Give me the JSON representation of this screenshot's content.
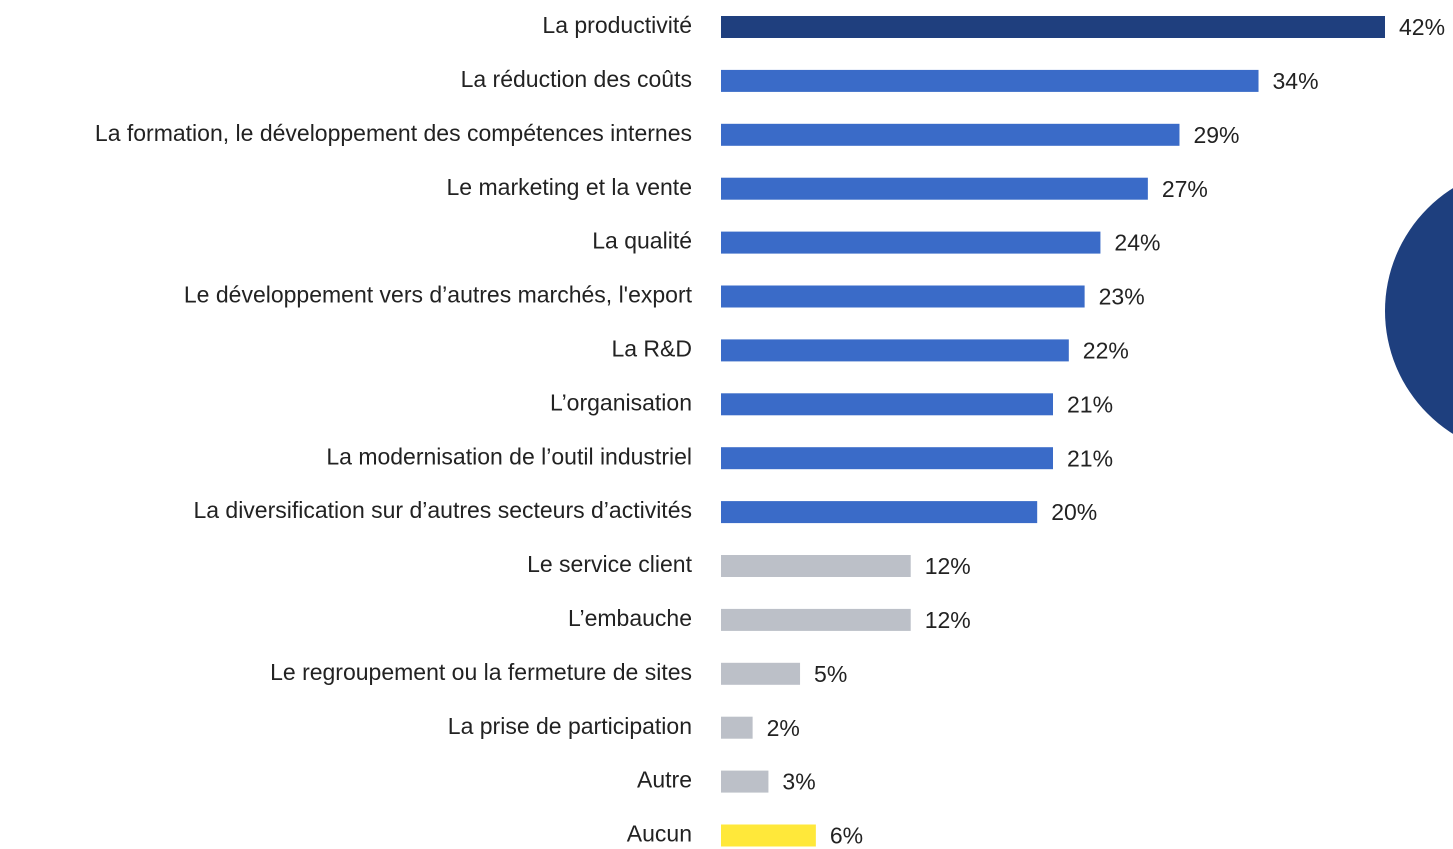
{
  "chart_data": {
    "type": "bar",
    "orientation": "horizontal",
    "categories": [
      "La productivité",
      "La réduction des coûts",
      "La formation, le développement des compétences internes",
      "Le marketing et la vente",
      "La qualité",
      "Le développement vers d’autres marchés, l'export",
      "La R&D",
      "L’organisation",
      "La modernisation de l’outil industriel",
      "La diversification sur d’autres secteurs d’activités",
      "Le service client",
      "L’embauche",
      "Le regroupement ou la fermeture de sites",
      "La prise de participation",
      "Autre",
      "Aucun"
    ],
    "values": [
      42,
      34,
      29,
      27,
      24,
      23,
      22,
      21,
      21,
      20,
      12,
      12,
      5,
      2,
      3,
      6
    ],
    "value_labels": [
      "42%",
      "34%",
      "29%",
      "27%",
      "24%",
      "23%",
      "22%",
      "21%",
      "21%",
      "20%",
      "12%",
      "12%",
      "5%",
      "2%",
      "3%",
      "6%"
    ],
    "colors": [
      "#1f3f7e",
      "#3a6bc8",
      "#3a6bc8",
      "#3a6bc8",
      "#3a6bc8",
      "#3a6bc8",
      "#3a6bc8",
      "#3a6bc8",
      "#3a6bc8",
      "#3a6bc8",
      "#bcc0c8",
      "#bcc0c8",
      "#bcc0c8",
      "#bcc0c8",
      "#bcc0c8",
      "#ffe83a"
    ]
  }
}
